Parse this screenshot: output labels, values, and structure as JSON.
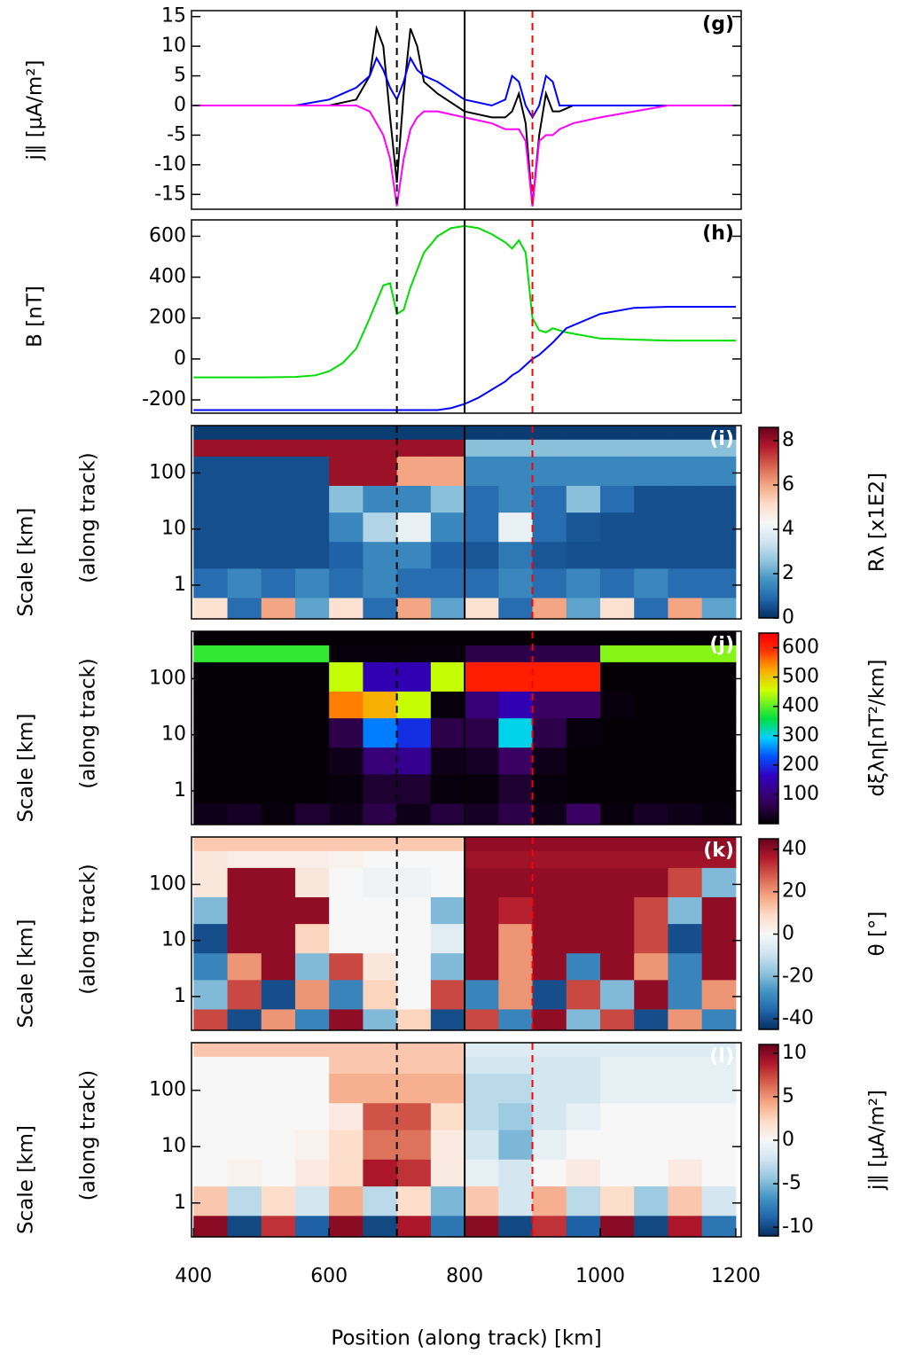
{
  "chart_data": [
    {
      "type": "line",
      "label": "(g)",
      "ylabel": "j∥ [μA/m²]",
      "xlim": [
        397,
        1208
      ],
      "ylim": [
        -17.5,
        16
      ],
      "yticks": [
        -15,
        -10,
        -5,
        0,
        5,
        10,
        15
      ],
      "vlines": [
        {
          "x": 700,
          "color": "#000000",
          "dashed": true
        },
        {
          "x": 800,
          "color": "#000000",
          "dashed": false
        },
        {
          "x": 900,
          "color": "#ff0000",
          "dashed": true
        }
      ],
      "x": [
        400,
        550,
        600,
        640,
        660,
        670,
        680,
        690,
        700,
        710,
        720,
        730,
        740,
        760,
        800,
        840,
        860,
        870,
        880,
        890,
        900,
        910,
        920,
        930,
        940,
        960,
        1000,
        1100,
        1200
      ],
      "series": [
        {
          "color": "#000000",
          "values": [
            0,
            0,
            0,
            1,
            5,
            13,
            10,
            -2,
            -13,
            2,
            13,
            10,
            4,
            2,
            -1,
            -2,
            -2,
            -1,
            2,
            -3,
            -17,
            -5,
            2,
            -1,
            -1,
            0,
            0,
            0,
            0
          ]
        },
        {
          "color": "#0000ff",
          "values": [
            0,
            0,
            1,
            3,
            5,
            8,
            6,
            3,
            1,
            4,
            8,
            6,
            5,
            4,
            1,
            0,
            1,
            5,
            4,
            0,
            -2,
            0,
            5,
            4,
            0,
            0,
            0,
            0,
            0
          ]
        },
        {
          "color": "#ff00ff",
          "values": [
            0,
            0,
            0,
            0,
            -1,
            -3,
            -5,
            -9,
            -17,
            -9,
            -4,
            -2,
            -1,
            -1,
            -2,
            -3,
            -4,
            -4,
            -4,
            -6,
            -17,
            -6,
            -5,
            -5,
            -4,
            -3,
            -2,
            0,
            0
          ]
        }
      ]
    },
    {
      "type": "line",
      "label": "(h)",
      "ylabel": "B [nT]",
      "xlim": [
        397,
        1208
      ],
      "ylim": [
        -265,
        680
      ],
      "yticks": [
        -200,
        0,
        200,
        400,
        600
      ],
      "vlines": [
        {
          "x": 700,
          "color": "#000000",
          "dashed": true
        },
        {
          "x": 800,
          "color": "#000000",
          "dashed": false
        },
        {
          "x": 900,
          "color": "#ff0000",
          "dashed": true
        }
      ],
      "x": [
        400,
        500,
        550,
        580,
        600,
        620,
        640,
        660,
        680,
        690,
        700,
        710,
        720,
        740,
        760,
        780,
        800,
        820,
        840,
        860,
        870,
        880,
        890,
        900,
        910,
        920,
        930,
        950,
        1000,
        1050,
        1100,
        1200
      ],
      "series": [
        {
          "color": "#00dd00",
          "values": [
            -90,
            -90,
            -88,
            -80,
            -60,
            -20,
            50,
            200,
            360,
            370,
            220,
            240,
            350,
            520,
            600,
            640,
            650,
            640,
            610,
            570,
            540,
            580,
            520,
            200,
            140,
            130,
            150,
            130,
            100,
            95,
            90,
            90
          ]
        },
        {
          "color": "#0000ff",
          "values": [
            -250,
            -250,
            -250,
            -250,
            -250,
            -250,
            -250,
            -250,
            -250,
            -250,
            -250,
            -250,
            -250,
            -250,
            -250,
            -240,
            -220,
            -190,
            -150,
            -110,
            -80,
            -60,
            -30,
            0,
            20,
            50,
            80,
            150,
            220,
            250,
            255,
            255
          ]
        }
      ]
    },
    {
      "type": "heatmap",
      "label": "(i)",
      "ylabel": [
        "Scale [km]",
        "(along track)"
      ],
      "log_y": true,
      "xlim": [
        397,
        1208
      ],
      "ylim": [
        0.25,
        700
      ],
      "yticks": [
        1,
        10,
        100
      ],
      "colormap": "RdBu_r",
      "clim": [
        0,
        8.6
      ],
      "cticks": [
        0,
        2,
        4,
        6,
        8
      ],
      "clabel": "Rλ [x1E2]",
      "vlines": [
        {
          "x": 700,
          "color": "#000000",
          "dashed": true
        },
        {
          "x": 800,
          "color": "#000000",
          "dashed": false
        },
        {
          "x": 900,
          "color": "#ff0000",
          "dashed": true
        }
      ],
      "xbins": [
        400,
        450,
        500,
        550,
        600,
        650,
        700,
        750,
        800,
        850,
        900,
        950,
        1000,
        1050,
        1100,
        1150,
        1200
      ],
      "ybins": [
        0.25,
        0.6,
        2,
        6,
        20,
        60,
        200,
        400,
        700
      ],
      "values": [
        [
          5,
          1,
          6,
          2,
          5,
          1,
          6,
          2,
          5,
          1,
          6,
          2,
          5,
          1,
          6,
          2
        ],
        [
          1,
          1.5,
          1,
          1.5,
          1,
          1.5,
          1,
          1,
          1,
          1.5,
          1,
          1.5,
          1,
          1.5,
          1,
          1
        ],
        [
          0.5,
          0.5,
          0.5,
          0.5,
          0.8,
          1.5,
          1.5,
          0.8,
          0.6,
          1.2,
          0.6,
          0.5,
          0.5,
          0.5,
          0.5,
          0.5
        ],
        [
          0.5,
          0.5,
          0.5,
          0.5,
          1.5,
          3,
          4,
          1.5,
          1,
          4,
          1,
          0.6,
          0.5,
          0.5,
          0.5,
          0.5
        ],
        [
          0.5,
          0.5,
          0.5,
          0.5,
          2.5,
          1.5,
          1.5,
          2.5,
          1,
          1.5,
          1,
          2.5,
          1,
          0.5,
          0.5,
          0.5
        ],
        [
          0.5,
          0.5,
          0.5,
          0.5,
          8,
          8,
          6,
          6,
          1.5,
          1.5,
          1.5,
          1.5,
          1.5,
          1.5,
          1.5,
          1.5
        ],
        [
          8,
          8,
          8,
          8,
          8,
          8,
          8,
          8,
          2.5,
          2.5,
          2.5,
          2.5,
          2.5,
          2.5,
          2.5,
          2.5
        ],
        [
          0.2,
          0.2,
          0.2,
          0.2,
          0.2,
          0.2,
          0.2,
          0.2,
          0.2,
          0.2,
          0.2,
          0.2,
          0.2,
          0.2,
          0.2,
          0.2
        ]
      ]
    },
    {
      "type": "heatmap",
      "label": "(j)",
      "ylabel": [
        "Scale [km]",
        "(along track)"
      ],
      "log_y": true,
      "xlim": [
        397,
        1208
      ],
      "ylim": [
        0.25,
        700
      ],
      "yticks": [
        1,
        10,
        100
      ],
      "colormap": "spectral",
      "clim": [
        0,
        650
      ],
      "cticks": [
        100,
        200,
        300,
        400,
        500,
        600
      ],
      "clabel": "dξλη[nT²/km]",
      "vlines": [
        {
          "x": 700,
          "color": "#000000",
          "dashed": true
        },
        {
          "x": 800,
          "color": "#000000",
          "dashed": false
        },
        {
          "x": 900,
          "color": "#ff0000",
          "dashed": true
        }
      ],
      "xbins": [
        400,
        450,
        500,
        550,
        600,
        650,
        700,
        750,
        800,
        850,
        900,
        950,
        1000,
        1050,
        1100,
        1150,
        1200
      ],
      "ybins": [
        0.25,
        0.6,
        2,
        6,
        20,
        60,
        200,
        400,
        700
      ],
      "values": [
        [
          20,
          30,
          10,
          40,
          20,
          60,
          20,
          50,
          30,
          60,
          20,
          80,
          10,
          30,
          20,
          10
        ],
        [
          5,
          5,
          5,
          5,
          10,
          40,
          40,
          10,
          10,
          40,
          10,
          5,
          5,
          5,
          5,
          5
        ],
        [
          5,
          5,
          5,
          5,
          20,
          100,
          120,
          20,
          30,
          80,
          20,
          5,
          5,
          5,
          5,
          5
        ],
        [
          5,
          5,
          5,
          5,
          60,
          250,
          200,
          60,
          60,
          300,
          60,
          10,
          5,
          5,
          5,
          5
        ],
        [
          5,
          5,
          5,
          5,
          550,
          520,
          450,
          10,
          100,
          150,
          80,
          80,
          10,
          5,
          5,
          5
        ],
        [
          5,
          5,
          5,
          5,
          450,
          150,
          150,
          450,
          600,
          600,
          600,
          600,
          5,
          5,
          5,
          5
        ],
        [
          380,
          380,
          380,
          380,
          10,
          10,
          10,
          10,
          60,
          60,
          60,
          60,
          420,
          420,
          420,
          420
        ],
        [
          5,
          5,
          5,
          5,
          5,
          5,
          5,
          5,
          5,
          5,
          5,
          5,
          5,
          5,
          5,
          5
        ]
      ]
    },
    {
      "type": "heatmap",
      "label": "(k)",
      "ylabel": [
        "Scale [km]",
        "(along track)"
      ],
      "log_y": true,
      "xlim": [
        397,
        1208
      ],
      "ylim": [
        0.25,
        700
      ],
      "yticks": [
        1,
        10,
        100
      ],
      "colormap": "RdBu_r",
      "clim": [
        -45,
        45
      ],
      "cticks": [
        -40,
        -20,
        0,
        20,
        40
      ],
      "clabel": "θ [°]",
      "vlines": [
        {
          "x": 700,
          "color": "#000000",
          "dashed": true
        },
        {
          "x": 800,
          "color": "#000000",
          "dashed": false
        },
        {
          "x": 900,
          "color": "#ff0000",
          "dashed": true
        }
      ],
      "xbins": [
        400,
        450,
        500,
        550,
        600,
        650,
        700,
        750,
        800,
        850,
        900,
        950,
        1000,
        1050,
        1100,
        1150,
        1200
      ],
      "ybins": [
        0.25,
        0.6,
        2,
        6,
        20,
        60,
        200,
        400,
        700
      ],
      "values": [
        [
          30,
          -40,
          20,
          -30,
          40,
          -20,
          10,
          -40,
          30,
          -30,
          40,
          -20,
          30,
          -40,
          20,
          -30
        ],
        [
          -20,
          30,
          -40,
          20,
          -30,
          10,
          0,
          30,
          -30,
          20,
          -40,
          30,
          -20,
          40,
          -30,
          20
        ],
        [
          -30,
          20,
          40,
          -20,
          30,
          5,
          0,
          -20,
          40,
          20,
          40,
          -30,
          40,
          20,
          -30,
          40
        ],
        [
          -40,
          40,
          40,
          10,
          0,
          0,
          0,
          -5,
          40,
          20,
          40,
          40,
          40,
          30,
          -40,
          40
        ],
        [
          -20,
          40,
          40,
          40,
          0,
          0,
          0,
          -20,
          40,
          35,
          40,
          40,
          40,
          30,
          -20,
          40
        ],
        [
          5,
          40,
          40,
          5,
          0,
          -2,
          -2,
          0,
          40,
          40,
          40,
          40,
          40,
          40,
          30,
          -20
        ],
        [
          5,
          3,
          3,
          3,
          2,
          0,
          0,
          0,
          38,
          38,
          38,
          38,
          38,
          38,
          38,
          38
        ],
        [
          12,
          12,
          12,
          12,
          12,
          12,
          12,
          12,
          40,
          40,
          40,
          40,
          40,
          40,
          40,
          40
        ]
      ]
    },
    {
      "type": "heatmap",
      "label": "(l)",
      "ylabel": [
        "Scale [km]",
        "(along track)"
      ],
      "log_y": true,
      "xlim": [
        397,
        1208
      ],
      "ylim": [
        0.25,
        700
      ],
      "yticks": [
        1,
        10,
        100
      ],
      "xticks": [
        400,
        600,
        800,
        1000,
        1200
      ],
      "xlabel": "Position (along track) [km]",
      "colormap": "RdBu_r",
      "clim": [
        -11,
        11
      ],
      "cticks": [
        -10,
        -5,
        0,
        5,
        10
      ],
      "clabel": "j∥ [μA/m²]",
      "vlines": [
        {
          "x": 700,
          "color": "#000000",
          "dashed": true
        },
        {
          "x": 800,
          "color": "#000000",
          "dashed": false
        },
        {
          "x": 900,
          "color": "#ff0000",
          "dashed": true
        }
      ],
      "xbins": [
        400,
        450,
        500,
        550,
        600,
        650,
        700,
        750,
        800,
        850,
        900,
        950,
        1000,
        1050,
        1100,
        1150,
        1200
      ],
      "ybins": [
        0.25,
        0.6,
        2,
        6,
        20,
        60,
        200,
        400,
        700
      ],
      "values": [
        [
          10,
          -10,
          8,
          -9,
          10,
          -10,
          9,
          -8,
          10,
          -10,
          8,
          -9,
          10,
          -10,
          9,
          -8
        ],
        [
          3,
          -3,
          2,
          -2,
          4,
          -3,
          2,
          -5,
          3,
          -2,
          4,
          -3,
          2,
          -4,
          3,
          -2
        ],
        [
          0,
          0.5,
          0,
          1,
          2,
          9,
          8,
          1,
          -1,
          -2,
          0,
          1,
          0,
          0,
          1,
          0
        ],
        [
          0,
          0,
          0,
          0.5,
          2,
          6,
          6,
          1,
          -2,
          -5,
          -1,
          0,
          0,
          0,
          0,
          0
        ],
        [
          0,
          0,
          0,
          0,
          1,
          7,
          7,
          2,
          -3,
          -4,
          -2,
          -1,
          0,
          0,
          0,
          0
        ],
        [
          0,
          0,
          0,
          0,
          4,
          4,
          4,
          4,
          -3,
          -3,
          -2,
          -2,
          -1,
          -1,
          -1,
          -1
        ],
        [
          0,
          0,
          0,
          0,
          3,
          3,
          3,
          3,
          -2,
          -2,
          -2,
          -2,
          -1,
          -1,
          -1,
          -1
        ],
        [
          3,
          3,
          3,
          3,
          3,
          3,
          3,
          3,
          -1.5,
          -1.5,
          -1.5,
          -1.5,
          -1.5,
          -1.5,
          -1.5,
          -1.5
        ]
      ]
    }
  ]
}
